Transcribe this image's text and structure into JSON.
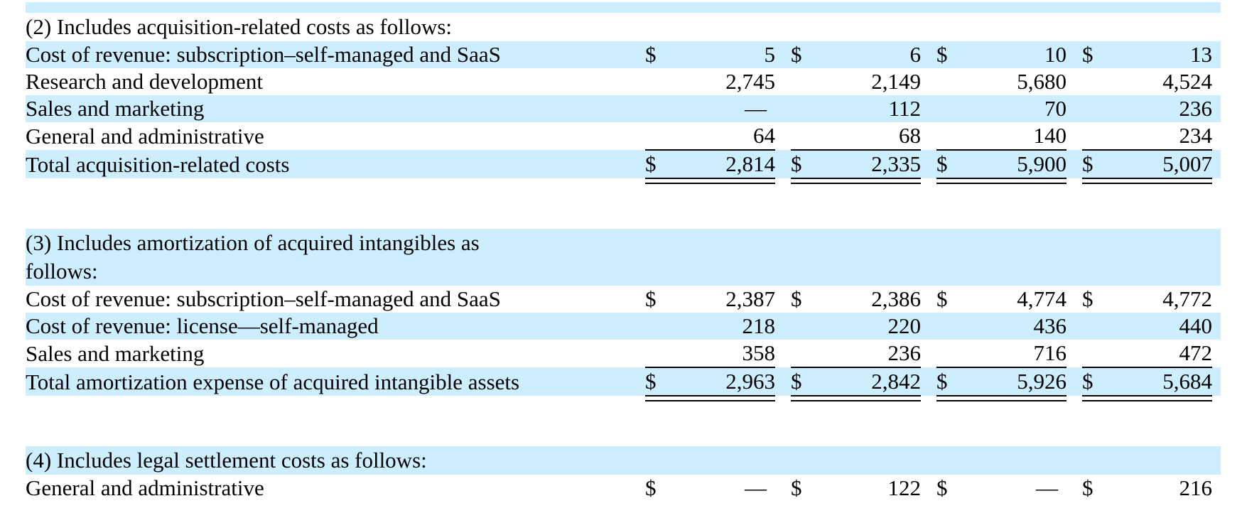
{
  "styles": {
    "highlight_color": "#cceeff",
    "text_color": "#000000",
    "background_color": "#ffffff",
    "rule_color": "#000000"
  },
  "table": {
    "column_groups": 4,
    "sections": [
      {
        "header_lines": [
          "(2) Includes acquisition-related costs as follows:"
        ],
        "header_highlight": false,
        "rows": [
          {
            "label": "Cost of revenue: subscription–self-managed and SaaS",
            "highlight": true,
            "rule_below": "none",
            "cells": [
              {
                "d": "$",
                "v": "5"
              },
              {
                "d": "$",
                "v": "6"
              },
              {
                "d": "$",
                "v": "10"
              },
              {
                "d": "$",
                "v": "13"
              }
            ]
          },
          {
            "label": "Research and development",
            "highlight": false,
            "rule_below": "none",
            "cells": [
              {
                "d": "",
                "v": "2,745"
              },
              {
                "d": "",
                "v": "2,149"
              },
              {
                "d": "",
                "v": "5,680"
              },
              {
                "d": "",
                "v": "4,524"
              }
            ]
          },
          {
            "label": "Sales and marketing",
            "highlight": true,
            "rule_below": "none",
            "cells": [
              {
                "d": "",
                "v": "—"
              },
              {
                "d": "",
                "v": "112"
              },
              {
                "d": "",
                "v": "70"
              },
              {
                "d": "",
                "v": "236"
              }
            ]
          },
          {
            "label": "General and administrative",
            "highlight": false,
            "rule_below": "single",
            "cells": [
              {
                "d": "",
                "v": "64"
              },
              {
                "d": "",
                "v": "68"
              },
              {
                "d": "",
                "v": "140"
              },
              {
                "d": "",
                "v": "234"
              }
            ]
          },
          {
            "label": "Total acquisition-related costs",
            "highlight": true,
            "rule_below": "double",
            "cells": [
              {
                "d": "$",
                "v": "2,814"
              },
              {
                "d": "$",
                "v": "2,335"
              },
              {
                "d": "$",
                "v": "5,900"
              },
              {
                "d": "$",
                "v": "5,007"
              }
            ]
          }
        ]
      },
      {
        "header_lines": [
          "(3) Includes amortization of acquired intangibles as",
          "follows:"
        ],
        "header_highlight": true,
        "rows": [
          {
            "label": "Cost of revenue: subscription–self-managed and SaaS",
            "highlight": false,
            "rule_below": "none",
            "cells": [
              {
                "d": "$",
                "v": "2,387"
              },
              {
                "d": "$",
                "v": "2,386"
              },
              {
                "d": "$",
                "v": "4,774"
              },
              {
                "d": "$",
                "v": "4,772"
              }
            ]
          },
          {
            "label": "Cost of revenue: license—self-managed",
            "highlight": true,
            "rule_below": "none",
            "cells": [
              {
                "d": "",
                "v": "218"
              },
              {
                "d": "",
                "v": "220"
              },
              {
                "d": "",
                "v": "436"
              },
              {
                "d": "",
                "v": "440"
              }
            ]
          },
          {
            "label": "Sales and marketing",
            "highlight": false,
            "rule_below": "single",
            "cells": [
              {
                "d": "",
                "v": "358"
              },
              {
                "d": "",
                "v": "236"
              },
              {
                "d": "",
                "v": "716"
              },
              {
                "d": "",
                "v": "472"
              }
            ]
          },
          {
            "label": "Total amortization expense of acquired intangible assets",
            "highlight": true,
            "rule_below": "double",
            "cells": [
              {
                "d": "$",
                "v": "2,963"
              },
              {
                "d": "$",
                "v": "2,842"
              },
              {
                "d": "$",
                "v": "5,926"
              },
              {
                "d": "$",
                "v": "5,684"
              }
            ]
          }
        ]
      },
      {
        "header_lines": [
          "(4) Includes legal settlement costs as follows:"
        ],
        "header_highlight": true,
        "rows": [
          {
            "label": "General and administrative",
            "highlight": false,
            "rule_below": "none",
            "cells": [
              {
                "d": "$",
                "v": "—"
              },
              {
                "d": "$",
                "v": "122"
              },
              {
                "d": "$",
                "v": "—"
              },
              {
                "d": "$",
                "v": "216"
              }
            ]
          }
        ]
      }
    ]
  }
}
